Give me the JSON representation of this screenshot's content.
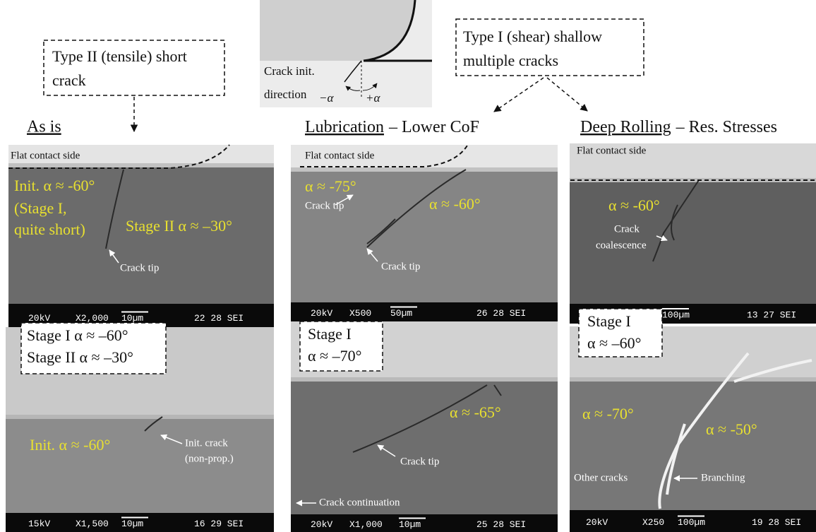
{
  "diagram": {
    "line1": "Crack init.",
    "line2": "direction",
    "minus": "−α",
    "plus": "+α"
  },
  "callouts": [
    {
      "lines": [
        "Type II (tensile) short",
        "crack"
      ]
    },
    {
      "lines": [
        "Type I (shear) shallow",
        "multiple cracks"
      ]
    }
  ],
  "columns": [
    {
      "title": "As is"
    },
    {
      "title": "Lubrication",
      "subtitle": "– Lower CoF"
    },
    {
      "title": "Deep Rolling",
      "subtitle": "– Res. Stresses"
    }
  ],
  "panels": [
    {
      "labels": [
        "Flat contact side",
        "Init. α ≈ -60°",
        "(Stage I,",
        "quite short)",
        "Stage II α ≈ –30°",
        "Crack tip"
      ],
      "info": [
        "20kV",
        "X2,000",
        "10µm",
        "22 28 SEI"
      ]
    },
    {
      "box": [
        "Stage I α ≈ –60°",
        "Stage II α ≈ –30°"
      ],
      "labels": [
        "Init. α ≈ -60°",
        "Init. crack",
        "(non-prop.)"
      ],
      "info": [
        "15kV",
        "X1,500",
        "10µm",
        "16 29 SEI"
      ]
    },
    {
      "labels": [
        "Flat contact side",
        "α ≈ -75°",
        "Crack tip",
        "α ≈ -60°",
        "Crack tip"
      ],
      "info": [
        "20kV",
        "X500",
        "50µm",
        "26 28 SEI"
      ]
    },
    {
      "box": [
        "Stage I",
        "α ≈ –70°"
      ],
      "labels": [
        "α ≈ -65°",
        "Crack tip",
        "Crack continuation"
      ],
      "info": [
        "20kV",
        "X1,000",
        "10µm",
        "25 28 SEI"
      ]
    },
    {
      "labels": [
        "Flat contact side",
        "α ≈ -60°",
        "Crack",
        "coalescence"
      ],
      "info": [
        "100µm",
        "13 27 SEI"
      ]
    },
    {
      "box": [
        "Stage I",
        "α ≈ –60°"
      ],
      "labels": [
        "α ≈ -70°",
        "α ≈ -50°",
        "Other cracks",
        "Branching"
      ],
      "info": [
        "20kV",
        "X250",
        "100µm",
        "19 28 SEI"
      ]
    }
  ]
}
